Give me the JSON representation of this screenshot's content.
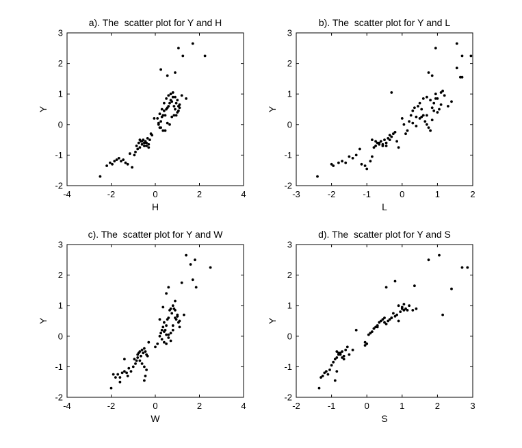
{
  "chart_data": [
    {
      "type": "scatter",
      "title": "a). The  scatter plot for Y and H",
      "xlabel": "H",
      "ylabel": "Y",
      "xlim": [
        -4,
        4
      ],
      "ylim": [
        -2,
        3
      ],
      "xticks": [
        "-4",
        "-2",
        "0",
        "2",
        "4"
      ],
      "yticks": [
        "-2",
        "-1",
        "0",
        "1",
        "2",
        "3"
      ],
      "grid": false,
      "x": [
        -2.5,
        -2.2,
        -2.05,
        -1.95,
        -1.85,
        -1.75,
        -1.65,
        -1.55,
        -1.45,
        -1.35,
        -1.25,
        -1.15,
        -1.05,
        -0.95,
        -0.9,
        -0.85,
        -0.8,
        -0.75,
        -0.7,
        -0.65,
        -0.6,
        -0.55,
        -0.5,
        -0.45,
        -0.4,
        -0.35,
        -0.3,
        -0.25,
        -0.2,
        -0.15,
        -0.7,
        -0.6,
        -0.5,
        -0.4,
        -0.3,
        0.1,
        0.15,
        0.2,
        0.25,
        0.3,
        0.35,
        0.4,
        0.45,
        0.5,
        0.55,
        0.6,
        0.65,
        0.7,
        0.75,
        0.8,
        0.85,
        0.9,
        0.95,
        1.0,
        1.05,
        1.1,
        0.2,
        0.3,
        0.4,
        0.5,
        0.6,
        0.7,
        0.8,
        0.9,
        1.0,
        1.1,
        0.25,
        0.45,
        0.65,
        0.85,
        1.05,
        1.4,
        -0.05,
        0.15,
        0.35,
        0.55,
        0.75,
        0.95,
        1.2,
        1.7,
        2.25,
        1.05,
        1.25,
        0.25,
        0.55,
        0.9
      ],
      "y": [
        -1.7,
        -1.35,
        -1.25,
        -1.3,
        -1.2,
        -1.15,
        -1.1,
        -1.2,
        -1.15,
        -1.25,
        -1.3,
        -0.95,
        -1.4,
        -1.0,
        -0.9,
        -0.7,
        -0.8,
        -0.6,
        -0.75,
        -0.55,
        -0.65,
        -0.5,
        -0.7,
        -0.55,
        -0.6,
        -0.45,
        -0.65,
        -0.5,
        -0.3,
        -0.35,
        -0.5,
        -0.55,
        -0.6,
        -0.7,
        -0.75,
        0.2,
        0.0,
        -0.1,
        0.1,
        0.25,
        0.3,
        0.45,
        0.3,
        0.5,
        0.55,
        0.6,
        0.7,
        0.8,
        0.75,
        0.9,
        0.6,
        0.5,
        0.7,
        0.4,
        0.45,
        0.55,
        0.35,
        0.5,
        0.7,
        0.85,
        0.95,
        1.0,
        1.05,
        0.9,
        0.8,
        0.65,
        -0.1,
        -0.2,
        0.0,
        0.3,
        0.6,
        0.85,
        0.2,
        0.05,
        -0.2,
        0.05,
        0.25,
        0.3,
        0.95,
        2.65,
        2.25,
        2.5,
        2.25,
        1.8,
        1.6,
        1.7
      ]
    },
    {
      "type": "scatter",
      "title": "b). The  scatter plot for Y and L",
      "xlabel": "L",
      "ylabel": "Y",
      "xlim": [
        -3,
        2
      ],
      "ylim": [
        -2,
        3
      ],
      "xticks": [
        "-3",
        "-2",
        "-1",
        "0",
        "1",
        "2"
      ],
      "yticks": [
        "-2",
        "-1",
        "0",
        "1",
        "2",
        "3"
      ],
      "grid": false,
      "x": [
        -2.4,
        -2.0,
        -1.95,
        -1.8,
        -1.7,
        -1.6,
        -1.5,
        -1.4,
        -1.3,
        -1.2,
        -1.15,
        -1.05,
        -1.0,
        -0.9,
        -0.85,
        -0.8,
        -0.75,
        -0.7,
        -0.65,
        -0.6,
        -0.55,
        -0.5,
        -0.45,
        -0.4,
        -0.35,
        -0.3,
        -0.25,
        -0.2,
        -0.15,
        -0.1,
        -0.85,
        -0.75,
        -0.65,
        -0.55,
        -0.45,
        -0.35,
        -0.3,
        0.0,
        0.05,
        0.1,
        0.15,
        0.2,
        0.25,
        0.3,
        0.35,
        0.4,
        0.45,
        0.5,
        0.55,
        0.6,
        0.65,
        0.7,
        0.75,
        0.8,
        0.85,
        0.9,
        0.95,
        1.0,
        1.05,
        1.1,
        1.2,
        1.3,
        1.4,
        0.3,
        0.5,
        0.7,
        0.9,
        1.0,
        1.1,
        0.6,
        0.7,
        0.8,
        0.85,
        0.95,
        1.55,
        1.7,
        1.95,
        1.65,
        0.85,
        0.95,
        1.55,
        1.7,
        0.75,
        0.4,
        0.55,
        1.15
      ],
      "y": [
        -1.7,
        -1.3,
        -1.35,
        -1.25,
        -1.2,
        -1.25,
        -1.05,
        -1.1,
        -1.0,
        -0.8,
        -1.3,
        -1.35,
        -1.45,
        -1.2,
        -1.05,
        -0.75,
        -0.7,
        -0.6,
        -0.65,
        -0.55,
        -0.7,
        -0.5,
        -0.6,
        -0.45,
        -0.35,
        -0.4,
        -0.3,
        -0.25,
        -0.55,
        -0.75,
        -0.5,
        -0.55,
        -0.6,
        -0.65,
        -0.7,
        -0.5,
        1.05,
        0.2,
        0.0,
        -0.3,
        -0.2,
        0.1,
        0.3,
        0.45,
        0.55,
        0.25,
        0.6,
        0.7,
        0.5,
        0.3,
        0.1,
        0.0,
        -0.1,
        -0.2,
        0.55,
        0.7,
        0.85,
        0.4,
        0.5,
        0.65,
        0.95,
        0.6,
        0.75,
        0.05,
        0.2,
        0.3,
        0.45,
        0.85,
        1.05,
        0.85,
        0.9,
        0.8,
        0.15,
        1.0,
        1.85,
        2.25,
        2.25,
        1.55,
        1.6,
        2.5,
        2.65,
        1.55,
        1.7,
        -0.05,
        0.25,
        1.1
      ]
    },
    {
      "type": "scatter",
      "title": "c). The  scatter plot for Y and W",
      "xlabel": "W",
      "ylabel": "Y",
      "xlim": [
        -4,
        4
      ],
      "ylim": [
        -2,
        3
      ],
      "xticks": [
        "-4",
        "-2",
        "0",
        "2",
        "4"
      ],
      "yticks": [
        "-2",
        "-1",
        "0",
        "1",
        "2",
        "3"
      ],
      "grid": false,
      "x": [
        -2.0,
        -1.9,
        -1.8,
        -1.7,
        -1.6,
        -1.5,
        -1.4,
        -1.3,
        -1.25,
        -1.2,
        -1.1,
        -1.0,
        -0.95,
        -0.9,
        -0.85,
        -0.8,
        -0.75,
        -0.7,
        -0.65,
        -0.6,
        -0.55,
        -0.5,
        -0.45,
        -0.4,
        -0.35,
        -0.3,
        -0.8,
        -0.7,
        -0.6,
        -0.5,
        -0.4,
        -0.5,
        -0.45,
        -1.6,
        -1.4,
        0.0,
        0.1,
        0.2,
        0.25,
        0.3,
        0.35,
        0.4,
        0.45,
        0.5,
        0.55,
        0.6,
        0.65,
        0.7,
        0.75,
        0.8,
        0.85,
        0.9,
        0.95,
        1.0,
        1.05,
        1.1,
        0.3,
        0.4,
        0.5,
        0.6,
        0.7,
        0.8,
        0.9,
        1.0,
        1.1,
        0.4,
        0.5,
        0.6,
        0.7,
        0.8,
        0.5,
        0.6,
        1.2,
        1.4,
        1.6,
        1.8,
        2.5,
        1.85,
        1.7,
        0.35,
        0.2,
        1.3,
        0.9,
        1.0
      ],
      "y": [
        -1.7,
        -1.25,
        -1.35,
        -1.25,
        -1.35,
        -1.2,
        -1.15,
        -1.2,
        -1.3,
        -1.05,
        -1.15,
        -1.0,
        -0.75,
        -0.9,
        -0.8,
        -0.6,
        -0.55,
        -0.5,
        -0.65,
        -0.45,
        -0.55,
        -0.4,
        -0.5,
        -0.6,
        -0.65,
        -0.2,
        -0.7,
        -0.8,
        -0.9,
        -1.0,
        -1.1,
        -1.45,
        -1.3,
        -1.5,
        -0.75,
        -0.35,
        -0.25,
        0.0,
        0.1,
        -0.1,
        0.3,
        0.45,
        0.2,
        0.35,
        0.55,
        0.6,
        0.85,
        0.9,
        0.75,
        1.0,
        0.9,
        0.85,
        0.55,
        0.7,
        0.45,
        0.5,
        0.2,
        0.15,
        0.05,
        -0.05,
        0.1,
        0.35,
        0.6,
        0.65,
        0.3,
        -0.2,
        -0.25,
        0.05,
        -0.15,
        0.2,
        1.4,
        1.6,
        1.75,
        2.65,
        2.35,
        2.5,
        2.25,
        1.6,
        1.85,
        0.95,
        0.55,
        0.7,
        1.15,
        0.65
      ]
    },
    {
      "type": "scatter",
      "title": "d). The  scatter plot for Y and S",
      "xlabel": "S",
      "ylabel": "Y",
      "xlim": [
        -2,
        3
      ],
      "ylim": [
        -2,
        3
      ],
      "xticks": [
        "-2",
        "-1",
        "0",
        "1",
        "2",
        "3"
      ],
      "yticks": [
        "-2",
        "-1",
        "0",
        "1",
        "2",
        "3"
      ],
      "grid": false,
      "x": [
        -1.35,
        -1.3,
        -1.25,
        -1.2,
        -1.15,
        -1.1,
        -1.05,
        -1.0,
        -0.95,
        -0.9,
        -0.85,
        -0.8,
        -0.75,
        -0.7,
        -0.65,
        -0.6,
        -0.85,
        -0.8,
        -0.75,
        -0.7,
        -0.65,
        -0.9,
        -0.85,
        -0.55,
        -0.5,
        -0.4,
        -0.3,
        -0.05,
        0.0,
        0.05,
        0.1,
        0.15,
        0.2,
        0.25,
        0.3,
        0.35,
        0.4,
        0.45,
        0.5,
        0.55,
        0.6,
        0.65,
        0.7,
        0.75,
        0.8,
        0.85,
        0.9,
        0.95,
        1.0,
        1.05,
        1.1,
        1.2,
        1.3,
        1.4,
        0.1,
        0.2,
        0.3,
        0.5,
        0.9,
        1.0,
        1.05,
        1.15,
        -0.05,
        0.3,
        0.7,
        1.35,
        1.75,
        2.05,
        2.15,
        2.4,
        2.7,
        2.85,
        0.55,
        0.8
      ],
      "y": [
        -1.7,
        -1.35,
        -1.3,
        -1.2,
        -1.15,
        -1.25,
        -1.1,
        -0.95,
        -0.85,
        -0.75,
        -0.7,
        -0.6,
        -0.55,
        -0.5,
        -0.65,
        -0.45,
        -0.5,
        -0.55,
        -0.6,
        -0.7,
        -0.75,
        -1.45,
        -1.15,
        -0.35,
        -0.6,
        -0.45,
        0.2,
        -0.2,
        -0.25,
        0.05,
        0.1,
        0.15,
        0.25,
        0.3,
        0.35,
        0.45,
        0.5,
        0.55,
        0.6,
        0.4,
        0.5,
        0.55,
        0.6,
        0.75,
        0.65,
        0.7,
        0.5,
        0.8,
        0.95,
        0.85,
        0.9,
        1.0,
        0.85,
        0.9,
        0.1,
        0.25,
        0.35,
        0.45,
        1.0,
        0.9,
        1.05,
        0.85,
        -0.3,
        0.3,
        0.6,
        1.65,
        2.5,
        2.65,
        0.7,
        1.55,
        2.25,
        2.25,
        1.6,
        1.8
      ]
    }
  ]
}
